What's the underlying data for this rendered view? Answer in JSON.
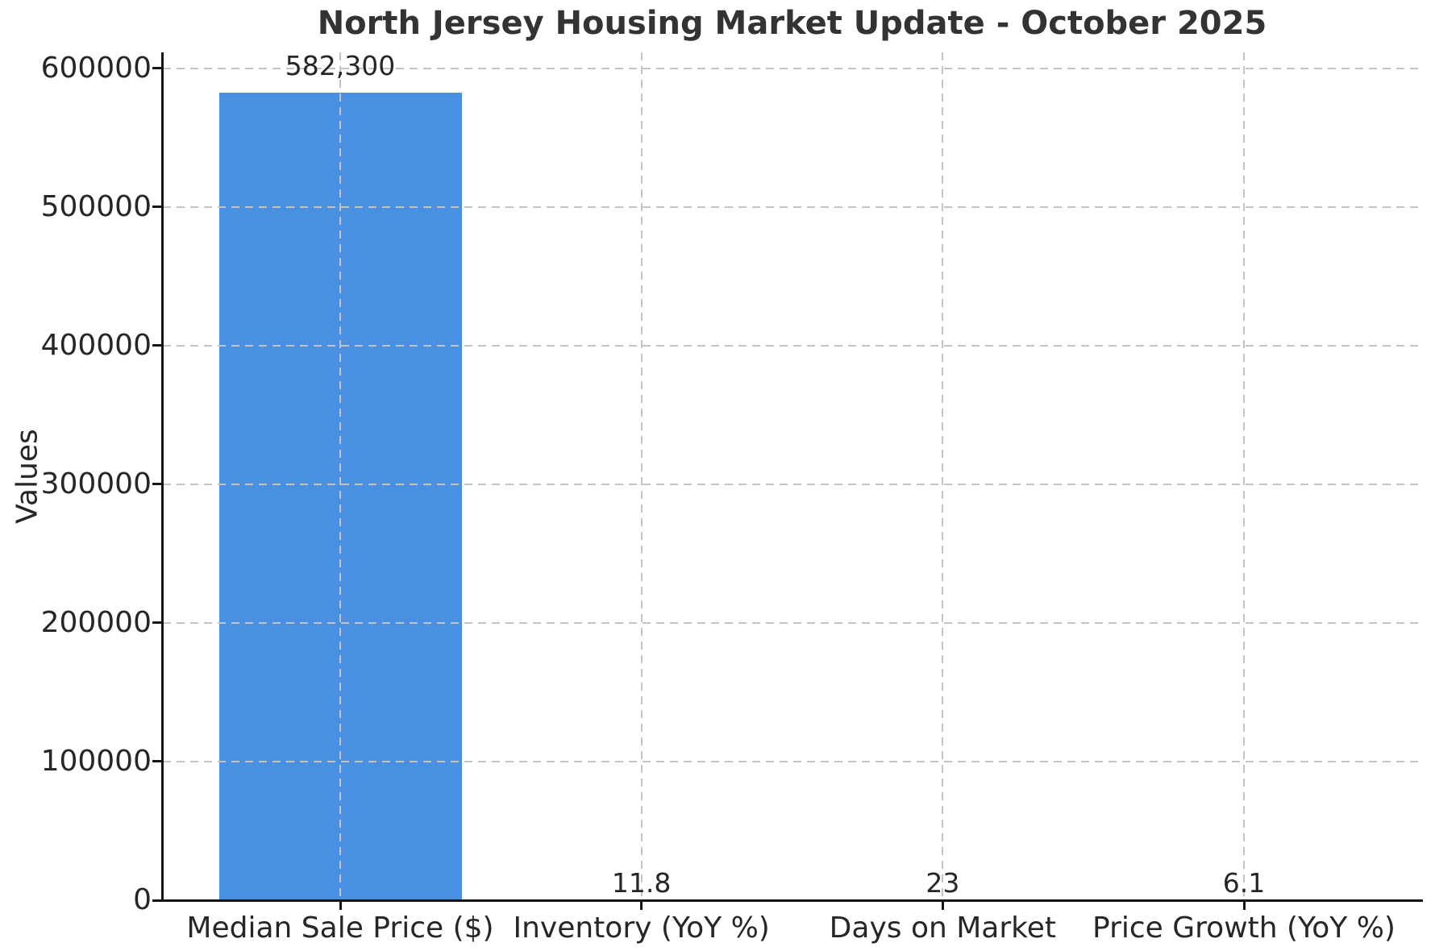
{
  "chart_data": {
    "type": "bar",
    "title": "North Jersey Housing Market Update - October 2025",
    "ylabel": "Values",
    "xlabel": "",
    "categories": [
      "Median Sale Price ($)",
      "Inventory (YoY %)",
      "Days on Market",
      "Price Growth (YoY %)"
    ],
    "values": [
      582300,
      11.8,
      23,
      6.1
    ],
    "value_labels": [
      "582,300",
      "11.8",
      "23",
      "6.1"
    ],
    "yticks": [
      0,
      100000,
      200000,
      300000,
      400000,
      500000,
      600000
    ],
    "ytick_labels": [
      "0",
      "100000",
      "200000",
      "300000",
      "400000",
      "500000",
      "600000"
    ],
    "ylim": [
      0,
      611415
    ],
    "grid": "dashed horizontal and vertical gridlines, drawn above bars",
    "legend_position": "none",
    "bar_color": "#4a90e2",
    "grid_color": "#c3c3c3",
    "axis_color": "#151515",
    "text_color": "#262626",
    "title_color": "#333333",
    "background_color": "#ffffff"
  }
}
